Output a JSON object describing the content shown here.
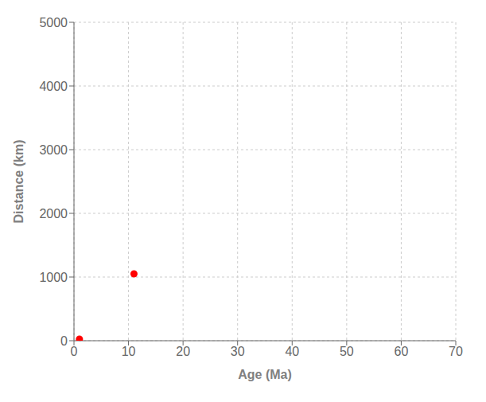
{
  "chart_data": {
    "type": "scatter",
    "xlabel": "Age (Ma)",
    "ylabel": "Distance (km)",
    "x": [
      1,
      11
    ],
    "values": [
      25,
      1050
    ],
    "color": "#ff0000",
    "xlim": [
      0,
      70
    ],
    "ylim": [
      0,
      5000
    ],
    "xticks": [
      0,
      10,
      20,
      30,
      40,
      50,
      60,
      70
    ],
    "yticks": [
      0,
      1000,
      2000,
      3000,
      4000,
      5000
    ],
    "grid": true
  }
}
